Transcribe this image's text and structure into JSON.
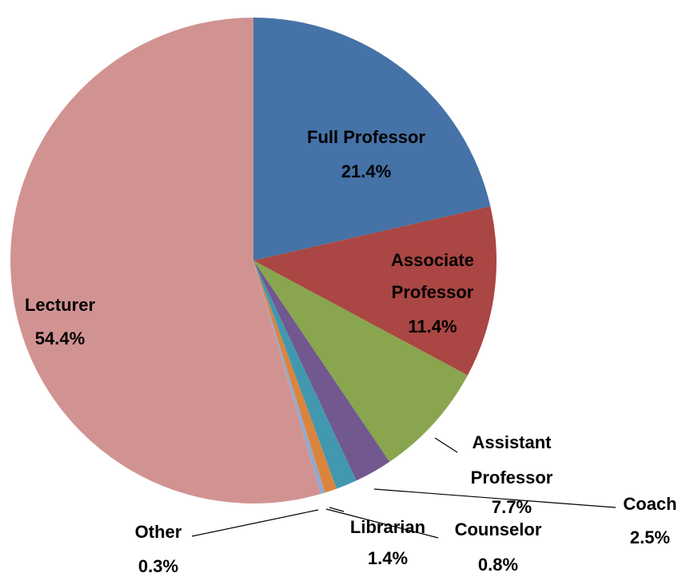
{
  "chart_data": {
    "type": "pie",
    "categories": [
      "Full Professor",
      "Associate Professor",
      "Assistant Professor",
      "Coach",
      "Librarian",
      "Counselor",
      "Other",
      "Lecturer"
    ],
    "values": [
      21.4,
      11.4,
      7.7,
      2.5,
      1.4,
      0.8,
      0.3,
      54.4
    ],
    "value_labels": [
      "21.4%",
      "11.4%",
      "7.7%",
      "2.5%",
      "1.4%",
      "0.8%",
      "0.3%",
      "54.4%"
    ],
    "colors": [
      "#4572a7",
      "#aa4643",
      "#89a54e",
      "#71588f",
      "#4198af",
      "#db843d",
      "#93a9cf",
      "#d19392"
    ]
  }
}
